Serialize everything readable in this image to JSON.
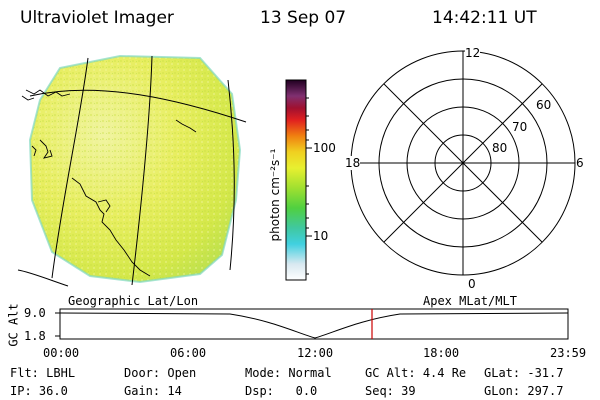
{
  "header": {
    "title": "Ultraviolet Imager",
    "date": "13 Sep 07",
    "time": "14:42:11 UT"
  },
  "colorbar": {
    "unit": "photon cm⁻²s⁻¹",
    "ticks": [
      "100",
      "10"
    ]
  },
  "polar": {
    "mlt_labels": {
      "top": "12",
      "left": "18",
      "right": "6",
      "bottom": "0"
    },
    "lat_labels": [
      "60",
      "70",
      "80"
    ]
  },
  "panels": {
    "left_label": "Geographic Lat/Lon",
    "right_label": "Apex MLat/MLT"
  },
  "altitude_plot": {
    "ylabel": "GC Alt",
    "yticks": [
      "9.0",
      "1.8"
    ],
    "xticks": [
      "00:00",
      "06:00",
      "12:00",
      "18:00",
      "23:59"
    ],
    "marker_time": "14:42",
    "marker_color": "#cc0000"
  },
  "status": {
    "filter": {
      "label": "Flt:",
      "value": "LBHL"
    },
    "ip": {
      "label": "IP:",
      "value": "36.0"
    },
    "door": {
      "label": "Door:",
      "value": "Open"
    },
    "gain": {
      "label": "Gain:",
      "value": "14"
    },
    "mode": {
      "label": "Mode:",
      "value": "Normal"
    },
    "dsp": {
      "label": "Dsp:",
      "value": "0.0"
    },
    "gc_alt": {
      "label": "GC Alt:",
      "value": "4.4 Re"
    },
    "seq": {
      "label": "Seq:",
      "value": "39"
    },
    "glat": {
      "label": "GLat:",
      "value": "-31.7"
    },
    "glon": {
      "label": "GLon:",
      "value": "297.7"
    }
  }
}
